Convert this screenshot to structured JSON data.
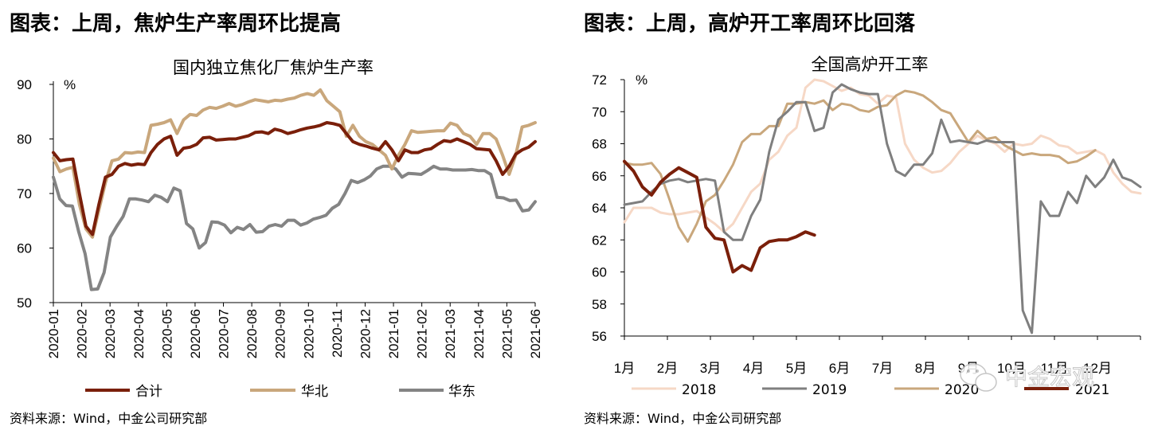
{
  "left": {
    "heading": "图表：上周，焦炉生产率周环比提高",
    "source": "资料来源：Wind，中金公司研究部",
    "chart_data": {
      "type": "line",
      "title": "国内独立焦化厂焦炉生产率",
      "ylabel": "%",
      "ylim": [
        50,
        90
      ],
      "yticks": [
        "50",
        "60",
        "70",
        "80",
        "90"
      ],
      "xticks": [
        "2020-01",
        "2020-02",
        "2020-03",
        "2020-04",
        "2020-05",
        "2020-06",
        "2020-07",
        "2020-08",
        "2020-09",
        "2020-10",
        "2020-11",
        "2020-12",
        "2021-01",
        "2021-02",
        "2021-03",
        "2021-04",
        "2021-05",
        "2021-06"
      ],
      "legend_position": "bottom",
      "series": [
        {
          "name": "合计",
          "color": "#7a1f0a",
          "width": 4,
          "values": [
            77.5,
            76,
            76.2,
            76.3,
            70,
            64,
            62.5,
            68,
            73,
            73.5,
            75,
            75.5,
            75.2,
            75.4,
            75.3,
            77.5,
            79,
            80,
            80.5,
            77,
            78.3,
            78.5,
            79,
            80.2,
            80.3,
            79.8,
            79.9,
            80,
            80,
            80.3,
            80.6,
            81.2,
            81.3,
            81,
            81.8,
            81.5,
            81,
            81.3,
            81.7,
            82,
            82.2,
            82.5,
            83,
            82.8,
            82.5,
            81,
            79.5,
            79,
            78.7,
            78.3,
            78,
            79.5,
            78,
            76,
            78,
            77.5,
            77.5,
            78,
            78.2,
            79,
            79.7,
            79.5,
            80,
            79.5,
            79,
            78.2,
            78.1,
            78,
            76,
            73.5,
            75,
            77.2,
            78,
            78.5,
            79.5
          ]
        },
        {
          "name": "华北",
          "color": "#c9a77c",
          "width": 4,
          "values": [
            76.5,
            74,
            74.5,
            74.8,
            68,
            63.5,
            62,
            67,
            72,
            76,
            76.3,
            77.5,
            77.4,
            77.6,
            77.5,
            82.5,
            82.7,
            83,
            83.5,
            81,
            83.5,
            84.5,
            84.3,
            85.3,
            85.8,
            85.6,
            86,
            86.5,
            86,
            86.3,
            86.8,
            87.2,
            87,
            86.8,
            87.1,
            87,
            87.3,
            87.5,
            88,
            88.3,
            88,
            89,
            87,
            86,
            85,
            80.5,
            82.5,
            80.5,
            79.5,
            79,
            78,
            77,
            74.5,
            77,
            79,
            81.5,
            81.2,
            81.3,
            81.4,
            81.5,
            81.5,
            82.9,
            82.5,
            81,
            80.5,
            79,
            81,
            81,
            80,
            77,
            73.5,
            77,
            82.2,
            82.5,
            83
          ]
        },
        {
          "name": "华东",
          "color": "#848484",
          "width": 4,
          "values": [
            73,
            69,
            67.8,
            67.7,
            63,
            59,
            52.4,
            52.5,
            55.5,
            62,
            64,
            65.8,
            69,
            69,
            68.8,
            68.5,
            69.7,
            69.3,
            68.5,
            71,
            70.5,
            64.5,
            63.5,
            60,
            61,
            64.8,
            64.7,
            64.2,
            62.8,
            63.8,
            63.4,
            64.3,
            62.9,
            63,
            64,
            64.3,
            64,
            65.1,
            65.1,
            64.2,
            64.6,
            65.3,
            65.6,
            66,
            67.3,
            68,
            70,
            72.4,
            72,
            72.5,
            73.2,
            74.5,
            75,
            75,
            74.5,
            73,
            73.7,
            73.6,
            73.5,
            74.2,
            75,
            74.5,
            74.5,
            74.3,
            74.3,
            74.3,
            74.4,
            74.2,
            74.2,
            73.5,
            69.3,
            69.2,
            68.7,
            68.8,
            66.8,
            67,
            68.5
          ]
        }
      ]
    }
  },
  "right": {
    "heading": "图表：上周，高炉开工率周环比回落",
    "source": "资料来源：Wind，中金公司研究部",
    "watermark": "中金宏观",
    "chart_data": {
      "type": "line",
      "title": "全国高炉开工率",
      "ylabel": "%",
      "ylim": [
        56,
        72
      ],
      "yticks": [
        "56",
        "58",
        "60",
        "62",
        "64",
        "66",
        "68",
        "70",
        "72"
      ],
      "xticks": [
        "1月",
        "2月",
        "3月",
        "4月",
        "5月",
        "6月",
        "7月",
        "8月",
        "9月",
        "10月",
        "11月",
        "12月"
      ],
      "legend_position": "bottom",
      "series": [
        {
          "name": "2018",
          "color": "#f6d8c6",
          "width": 3,
          "values": [
            63.1,
            64,
            64,
            64,
            63.7,
            63.6,
            63.6,
            63.7,
            63.8,
            63.4,
            63,
            62.5,
            63,
            64,
            65,
            65.5,
            67,
            67.5,
            68.5,
            69,
            71.5,
            72,
            71.9,
            71.6,
            71.3,
            71.5,
            71.1,
            71,
            70.5,
            71,
            70.9,
            68,
            67,
            66.5,
            66.2,
            66.3,
            66.8,
            67.5,
            68,
            68.5,
            68.2,
            68,
            67.5,
            68,
            67.9,
            68,
            68.5,
            68.3,
            67.9,
            67.8,
            67.4,
            67.5,
            67.6,
            67.3,
            66.2,
            65.5,
            65,
            64.9
          ]
        },
        {
          "name": "2019",
          "color": "#7f7f7f",
          "width": 3,
          "values": [
            64.2,
            64.3,
            64.4,
            65,
            65.5,
            65.7,
            65.8,
            65.6,
            65.7,
            65.8,
            65.7,
            62.5,
            62,
            62,
            63.5,
            64.5,
            67.5,
            69.5,
            70,
            70.6,
            70.6,
            68.8,
            69,
            71.2,
            71.7,
            71.4,
            71.2,
            71.1,
            71.1,
            68,
            66.3,
            66,
            66.7,
            66.7,
            67.4,
            69.5,
            68.1,
            68.2,
            68.1,
            68,
            68.2,
            68.1,
            68.1,
            68.1,
            57.6,
            56.2,
            64.4,
            63.5,
            63.5,
            65,
            64.3,
            66,
            65.3,
            65.9,
            67,
            65.9,
            65.7,
            65.3
          ]
        },
        {
          "name": "2020",
          "color": "#c9a77c",
          "width": 3,
          "values": [
            66.8,
            66.7,
            66.7,
            66.8,
            66.1,
            64.5,
            62.8,
            61.9,
            63,
            64.4,
            64.8,
            65.7,
            66.7,
            68.1,
            68.6,
            68.6,
            69.1,
            69.1,
            70.5,
            70.5,
            70.6,
            70.5,
            70.7,
            70.1,
            70.5,
            70.4,
            70.1,
            70,
            70.3,
            70.4,
            71,
            71.3,
            71.2,
            71,
            70.6,
            70.1,
            69.9,
            69,
            68.1,
            68.8,
            68.3,
            68.4,
            67.9,
            67.6,
            67.3,
            67.4,
            67.3,
            67.3,
            67.2,
            66.8,
            66.9,
            67.2,
            67.6
          ]
        },
        {
          "name": "2021",
          "color": "#7a1f0a",
          "width": 4,
          "values": [
            66.9,
            66.3,
            65.3,
            64.8,
            65.6,
            66.1,
            66.5,
            66.2,
            65.9,
            62.8,
            62.1,
            62,
            60,
            60.4,
            60.1,
            61.5,
            61.9,
            62,
            62,
            62.2,
            62.5,
            62.3
          ]
        }
      ]
    }
  }
}
